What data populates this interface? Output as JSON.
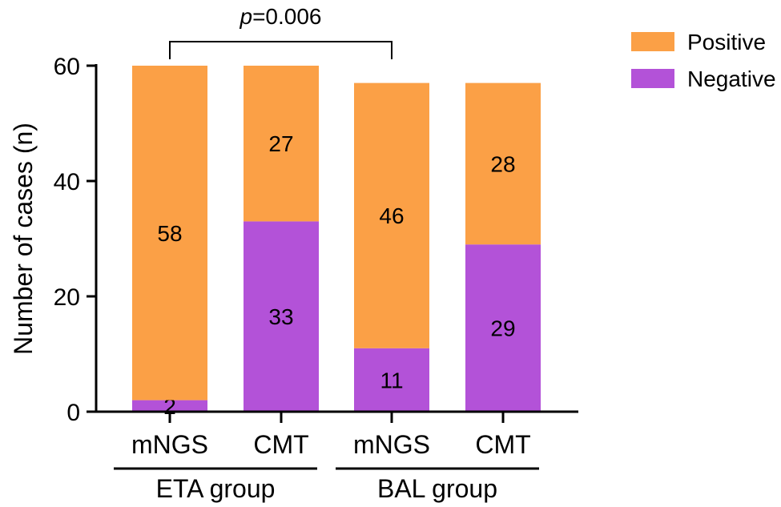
{
  "chart_data": {
    "type": "bar",
    "stacked": true,
    "ylabel": "Number of cases (n)",
    "ylim": [
      0,
      60
    ],
    "yticks": [
      "0",
      "20",
      "40",
      "60"
    ],
    "categories": [
      "mNGS",
      "CMT",
      "mNGS",
      "CMT"
    ],
    "groups": [
      {
        "label": "ETA group",
        "categories": [
          0,
          1
        ]
      },
      {
        "label": "BAL group",
        "categories": [
          2,
          3
        ]
      }
    ],
    "series": [
      {
        "name": "Negative",
        "color": "#B352D8",
        "values": [
          2,
          33,
          11,
          29
        ],
        "labels": [
          "2",
          "33",
          "11",
          "29"
        ]
      },
      {
        "name": "Positive",
        "color": "#FBA046",
        "values": [
          58,
          27,
          46,
          28
        ],
        "labels": [
          "58",
          "27",
          "46",
          "28"
        ]
      }
    ],
    "legend": {
      "position": "top-right",
      "order": [
        "Positive",
        "Negative"
      ]
    },
    "significance": {
      "from": 0,
      "to": 2,
      "p_italic": "p",
      "p_text": "=0.006"
    },
    "grid": false
  }
}
